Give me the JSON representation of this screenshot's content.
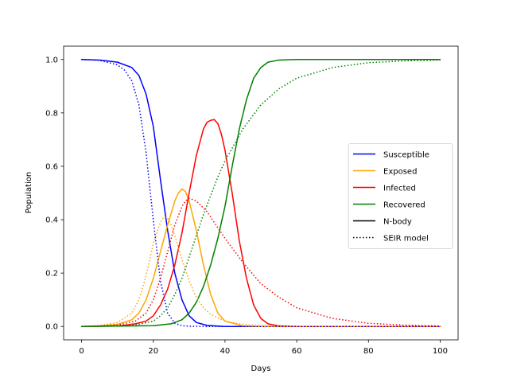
{
  "chart_data": {
    "type": "line",
    "title": "",
    "xlabel": "Days",
    "ylabel": "Population",
    "xlim": [
      -5,
      105
    ],
    "ylim": [
      -0.05,
      1.05
    ],
    "xticks": [
      0,
      20,
      40,
      60,
      80,
      100
    ],
    "xtick_labels": [
      "0",
      "20",
      "40",
      "60",
      "80",
      "100"
    ],
    "yticks": [
      0.0,
      0.2,
      0.4,
      0.6,
      0.8,
      1.0
    ],
    "ytick_labels": [
      "0.0",
      "0.2",
      "0.4",
      "0.6",
      "0.8",
      "1.0"
    ],
    "grid": false,
    "legend_position": "center-right",
    "legend": [
      {
        "label": "Susceptible",
        "color": "#0000ff",
        "style": "solid"
      },
      {
        "label": "Exposed",
        "color": "#ffa500",
        "style": "solid"
      },
      {
        "label": "Infected",
        "color": "#ff0000",
        "style": "solid"
      },
      {
        "label": "Recovered",
        "color": "#008000",
        "style": "solid"
      },
      {
        "label": "N-body",
        "color": "#000000",
        "style": "solid"
      },
      {
        "label": "SEIR model",
        "color": "#000000",
        "style": "dotted"
      }
    ],
    "series": [
      {
        "group": "Susceptible",
        "model": "N-body",
        "color": "#0000ff",
        "style": "solid",
        "x": [
          0,
          5,
          10,
          14,
          16,
          18,
          20,
          22,
          24,
          26,
          28,
          30,
          32,
          35,
          40,
          50,
          100
        ],
        "y": [
          1.0,
          0.998,
          0.99,
          0.97,
          0.94,
          0.87,
          0.75,
          0.55,
          0.36,
          0.2,
          0.1,
          0.04,
          0.015,
          0.004,
          0.0,
          0.0,
          0.0
        ]
      },
      {
        "group": "Exposed",
        "model": "N-body",
        "color": "#ffa500",
        "style": "solid",
        "x": [
          0,
          5,
          10,
          14,
          16,
          18,
          20,
          22,
          24,
          26,
          27,
          28,
          29,
          30,
          32,
          34,
          36,
          38,
          40,
          45,
          50,
          100
        ],
        "y": [
          0.0,
          0.002,
          0.008,
          0.025,
          0.05,
          0.1,
          0.18,
          0.28,
          0.38,
          0.47,
          0.5,
          0.515,
          0.505,
          0.47,
          0.36,
          0.23,
          0.12,
          0.05,
          0.02,
          0.002,
          0.0,
          0.0
        ]
      },
      {
        "group": "Infected",
        "model": "N-body",
        "color": "#ff0000",
        "style": "solid",
        "x": [
          0,
          10,
          15,
          18,
          20,
          22,
          24,
          26,
          28,
          30,
          32,
          34,
          35,
          36,
          37,
          38,
          39,
          40,
          42,
          44,
          46,
          48,
          50,
          52,
          55,
          60,
          100
        ],
        "y": [
          0.0,
          0.002,
          0.01,
          0.02,
          0.04,
          0.08,
          0.14,
          0.23,
          0.35,
          0.5,
          0.64,
          0.74,
          0.765,
          0.772,
          0.775,
          0.76,
          0.72,
          0.66,
          0.5,
          0.32,
          0.18,
          0.08,
          0.03,
          0.01,
          0.002,
          0.0,
          0.0
        ]
      },
      {
        "group": "Recovered",
        "model": "N-body",
        "color": "#008000",
        "style": "solid",
        "x": [
          0,
          20,
          25,
          28,
          30,
          32,
          34,
          36,
          38,
          40,
          42,
          44,
          46,
          48,
          50,
          52,
          55,
          60,
          100
        ],
        "y": [
          0.0,
          0.003,
          0.01,
          0.025,
          0.05,
          0.09,
          0.15,
          0.23,
          0.33,
          0.45,
          0.6,
          0.74,
          0.85,
          0.93,
          0.97,
          0.99,
          0.998,
          1.0,
          1.0
        ]
      },
      {
        "group": "Susceptible",
        "model": "SEIR model",
        "color": "#0000ff",
        "style": "dotted",
        "x": [
          0,
          5,
          10,
          12,
          14,
          16,
          18,
          20,
          22,
          24,
          26,
          28,
          30,
          35,
          100
        ],
        "y": [
          1.0,
          0.997,
          0.98,
          0.96,
          0.92,
          0.83,
          0.65,
          0.4,
          0.17,
          0.05,
          0.012,
          0.003,
          0.001,
          0.0,
          0.0
        ]
      },
      {
        "group": "Exposed",
        "model": "SEIR model",
        "color": "#ffa500",
        "style": "dotted",
        "x": [
          0,
          5,
          10,
          14,
          16,
          18,
          20,
          22,
          23,
          24,
          25,
          26,
          28,
          30,
          32,
          34,
          36,
          40,
          45,
          50,
          55,
          60,
          100
        ],
        "y": [
          0.0,
          0.003,
          0.015,
          0.05,
          0.1,
          0.19,
          0.31,
          0.39,
          0.41,
          0.405,
          0.38,
          0.34,
          0.25,
          0.17,
          0.11,
          0.07,
          0.045,
          0.02,
          0.008,
          0.003,
          0.001,
          0.0,
          0.0
        ]
      },
      {
        "group": "Infected",
        "model": "SEIR model",
        "color": "#ff0000",
        "style": "dotted",
        "x": [
          0,
          10,
          15,
          18,
          20,
          22,
          24,
          26,
          28,
          29,
          30,
          32,
          35,
          40,
          45,
          50,
          55,
          60,
          70,
          80,
          90,
          100
        ],
        "y": [
          0.0,
          0.005,
          0.02,
          0.05,
          0.1,
          0.18,
          0.28,
          0.38,
          0.45,
          0.47,
          0.48,
          0.47,
          0.43,
          0.33,
          0.24,
          0.16,
          0.11,
          0.07,
          0.03,
          0.012,
          0.005,
          0.002
        ]
      },
      {
        "group": "Recovered",
        "model": "SEIR model",
        "color": "#008000",
        "style": "dotted",
        "x": [
          0,
          15,
          20,
          22,
          24,
          26,
          28,
          30,
          32,
          34,
          36,
          38,
          40,
          45,
          50,
          55,
          60,
          70,
          80,
          90,
          100
        ],
        "y": [
          0.0,
          0.005,
          0.02,
          0.04,
          0.07,
          0.12,
          0.18,
          0.26,
          0.34,
          0.42,
          0.49,
          0.56,
          0.62,
          0.74,
          0.83,
          0.89,
          0.93,
          0.97,
          0.988,
          0.995,
          0.998
        ]
      }
    ]
  }
}
